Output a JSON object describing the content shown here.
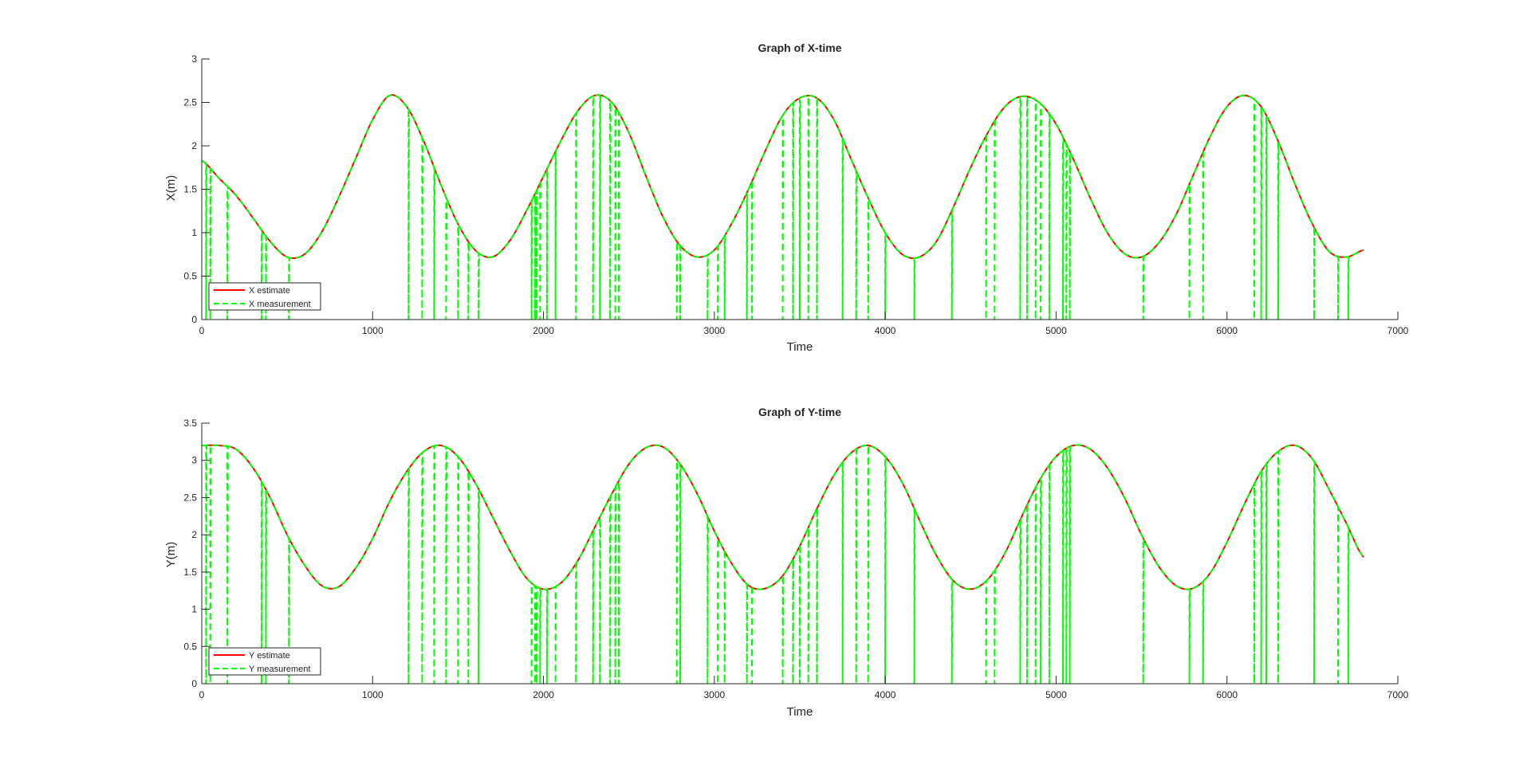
{
  "chart_data": [
    {
      "type": "line",
      "title": "Graph of X-time",
      "xlabel": "Time",
      "ylabel": "X(m)",
      "xlim": [
        0,
        7000
      ],
      "ylim": [
        0,
        3
      ],
      "xticks": [
        "0",
        "1000",
        "2000",
        "3000",
        "4000",
        "5000",
        "6000",
        "7000"
      ],
      "yticks": [
        "0",
        "0.5",
        "1",
        "1.5",
        "2",
        "2.5",
        "3"
      ],
      "grid": false,
      "legend_position": "bottom-left",
      "series": [
        {
          "name": "X estimate",
          "style": "solid",
          "color": "#ff0000",
          "x": [
            0,
            100,
            200,
            300,
            400,
            500,
            600,
            700,
            800,
            900,
            1000,
            1100,
            1200,
            1300,
            1400,
            1500,
            1600,
            1700,
            1800,
            1900,
            2000,
            2100,
            2200,
            2300,
            2400,
            2500,
            2600,
            2700,
            2800,
            2900,
            3000,
            3100,
            3200,
            3300,
            3400,
            3500,
            3600,
            3700,
            3800,
            3900,
            4000,
            4100,
            4200,
            4300,
            4400,
            4500,
            4600,
            4700,
            4800,
            4900,
            5000,
            5100,
            5200,
            5300,
            5400,
            5500,
            5600,
            5700,
            5800,
            5900,
            6000,
            6100,
            6200,
            6300,
            6400,
            6500,
            6600,
            6700,
            6800
          ],
          "values": [
            1.83,
            1.63,
            1.43,
            1.17,
            0.9,
            0.72,
            0.75,
            1.0,
            1.4,
            1.85,
            2.3,
            2.58,
            2.45,
            2.05,
            1.55,
            1.1,
            0.8,
            0.72,
            0.9,
            1.25,
            1.65,
            2.05,
            2.4,
            2.58,
            2.5,
            2.15,
            1.65,
            1.18,
            0.85,
            0.72,
            0.8,
            1.1,
            1.5,
            1.95,
            2.35,
            2.55,
            2.55,
            2.3,
            1.85,
            1.4,
            1.0,
            0.75,
            0.72,
            0.9,
            1.3,
            1.75,
            2.15,
            2.45,
            2.57,
            2.5,
            2.25,
            1.85,
            1.4,
            1.0,
            0.76,
            0.72,
            0.88,
            1.2,
            1.65,
            2.1,
            2.45,
            2.58,
            2.45,
            2.05,
            1.55,
            1.1,
            0.78,
            0.72,
            0.8
          ]
        },
        {
          "name": "X measurement",
          "style": "dashed",
          "color": "#00ff00",
          "dropout_times": [
            25,
            50,
            150,
            350,
            375,
            510,
            1210,
            1290,
            1360,
            1430,
            1500,
            1560,
            1620,
            1930,
            1950,
            1960,
            1980,
            2020,
            2070,
            2190,
            2290,
            2330,
            2390,
            2420,
            2440,
            2780,
            2800,
            2960,
            3020,
            3060,
            3190,
            3220,
            3400,
            3460,
            3500,
            3550,
            3600,
            3750,
            3830,
            3900,
            4000,
            4170,
            4390,
            4590,
            4640,
            4790,
            4830,
            4880,
            4910,
            4960,
            5040,
            5060,
            5080,
            5510,
            5780,
            5860,
            6160,
            6200,
            6230,
            6300,
            6510,
            6650,
            6710
          ]
        }
      ]
    },
    {
      "type": "line",
      "title": "Graph of Y-time",
      "xlabel": "Time",
      "ylabel": "Y(m)",
      "xlim": [
        0,
        7000
      ],
      "ylim": [
        0,
        3.5
      ],
      "xticks": [
        "0",
        "1000",
        "2000",
        "3000",
        "4000",
        "5000",
        "6000",
        "7000"
      ],
      "yticks": [
        "0",
        "0.5",
        "1",
        "1.5",
        "2",
        "2.5",
        "3",
        "3.5"
      ],
      "grid": false,
      "legend_position": "bottom-left",
      "series": [
        {
          "name": "Y estimate",
          "style": "solid",
          "color": "#ff0000",
          "x": [
            0,
            100,
            200,
            300,
            400,
            500,
            600,
            700,
            800,
            900,
            1000,
            1100,
            1200,
            1300,
            1400,
            1500,
            1600,
            1700,
            1800,
            1900,
            2000,
            2100,
            2200,
            2300,
            2400,
            2500,
            2600,
            2700,
            2800,
            2900,
            3000,
            3100,
            3200,
            3300,
            3400,
            3500,
            3600,
            3700,
            3800,
            3900,
            4000,
            4100,
            4200,
            4300,
            4400,
            4500,
            4600,
            4700,
            4800,
            4900,
            5000,
            5100,
            5200,
            5300,
            5400,
            5500,
            5600,
            5700,
            5800,
            5900,
            6000,
            6100,
            6200,
            6300,
            6400,
            6500,
            6600,
            6700,
            6800
          ],
          "values": [
            3.2,
            3.2,
            3.15,
            2.9,
            2.5,
            2.0,
            1.6,
            1.32,
            1.3,
            1.55,
            1.95,
            2.45,
            2.85,
            3.12,
            3.2,
            3.05,
            2.7,
            2.25,
            1.8,
            1.42,
            1.27,
            1.35,
            1.65,
            2.1,
            2.55,
            2.95,
            3.17,
            3.18,
            2.95,
            2.55,
            2.05,
            1.62,
            1.32,
            1.28,
            1.45,
            1.85,
            2.35,
            2.8,
            3.1,
            3.2,
            3.05,
            2.7,
            2.2,
            1.72,
            1.38,
            1.27,
            1.4,
            1.75,
            2.25,
            2.72,
            3.05,
            3.2,
            3.15,
            2.9,
            2.5,
            2.0,
            1.58,
            1.32,
            1.28,
            1.48,
            1.9,
            2.4,
            2.85,
            3.12,
            3.2,
            3.02,
            2.6,
            2.15,
            1.7
          ]
        },
        {
          "name": "Y measurement",
          "style": "dashed",
          "color": "#00ff00",
          "dropout_times": [
            25,
            50,
            150,
            350,
            375,
            510,
            1210,
            1290,
            1360,
            1430,
            1500,
            1560,
            1620,
            1930,
            1950,
            1960,
            1980,
            2020,
            2070,
            2190,
            2290,
            2330,
            2390,
            2420,
            2440,
            2780,
            2800,
            2960,
            3020,
            3060,
            3190,
            3220,
            3400,
            3460,
            3500,
            3550,
            3600,
            3750,
            3830,
            3900,
            4000,
            4170,
            4390,
            4590,
            4640,
            4790,
            4830,
            4880,
            4910,
            4960,
            5040,
            5060,
            5080,
            5510,
            5780,
            5860,
            6160,
            6200,
            6230,
            6300,
            6510,
            6650,
            6710
          ]
        }
      ]
    }
  ]
}
